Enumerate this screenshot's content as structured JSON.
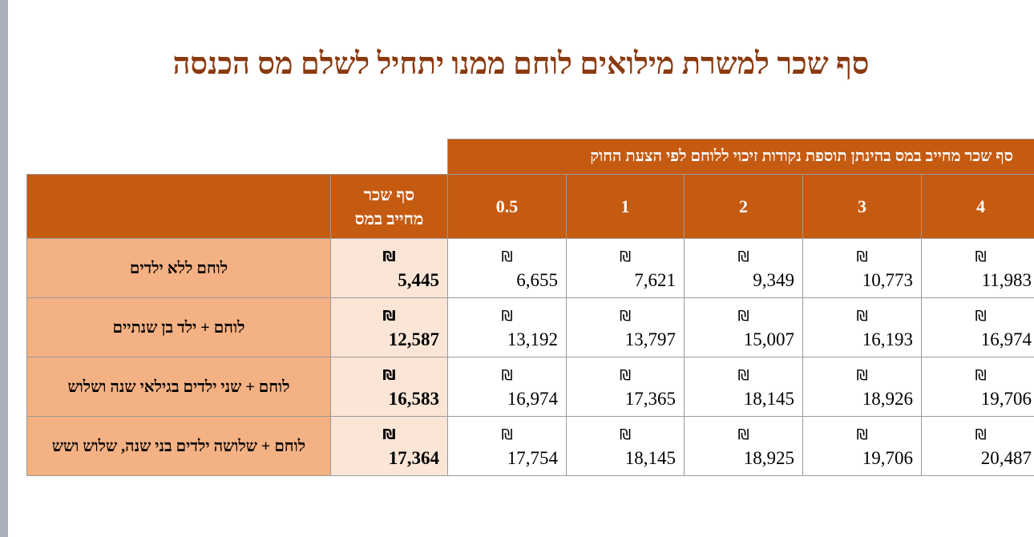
{
  "title": "סף שכר למשרת מילואים לוחם ממנו יתחיל לשלם מס הכנסה",
  "table": {
    "group_header": "סף שכר מחייב במס בהינתן תוספת נקודות זיכוי ללוחם לפי הצעת החוק",
    "columns": [
      "סף שכר מחייב במס",
      "0.5",
      "1",
      "2",
      "3",
      "4"
    ],
    "currency": "₪",
    "rows": [
      {
        "label": "לוחם ללא ילדים",
        "values": [
          "5,445",
          "6,655",
          "7,621",
          "9,349",
          "10,773",
          "11,983"
        ]
      },
      {
        "label": "לוחם + ילד בן שנתיים",
        "values": [
          "12,587",
          "13,192",
          "13,797",
          "15,007",
          "16,193",
          "16,974"
        ]
      },
      {
        "label": "לוחם + שני ילדים בגילאי שנה ושלוש",
        "values": [
          "16,583",
          "16,974",
          "17,365",
          "18,145",
          "18,926",
          "19,706"
        ]
      },
      {
        "label": "לוחם + שלושה ילדים בני שנה, שלוש ושש",
        "values": [
          "17,364",
          "17,754",
          "18,145",
          "18,925",
          "19,706",
          "20,487"
        ]
      }
    ]
  }
}
